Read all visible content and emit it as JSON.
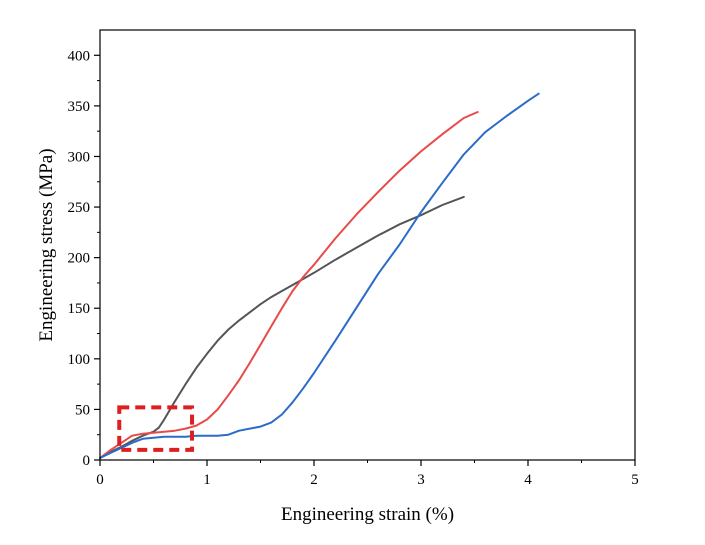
{
  "chart_data": {
    "type": "line",
    "title": "",
    "xlabel": "Engineering strain (%)",
    "ylabel": "Engineering stress (MPa)",
    "xlim": [
      0,
      5
    ],
    "ylim": [
      0,
      425
    ],
    "xticks": [
      0,
      1,
      2,
      3,
      4,
      5
    ],
    "yticks": [
      0,
      50,
      100,
      150,
      200,
      250,
      300,
      350,
      400
    ],
    "grid": false,
    "legend": "none",
    "series": [
      {
        "color": "#555555",
        "x": [
          0,
          0.1,
          0.2,
          0.3,
          0.4,
          0.5,
          0.55,
          0.6,
          0.7,
          0.8,
          0.9,
          1.0,
          1.1,
          1.2,
          1.3,
          1.4,
          1.5,
          1.6,
          1.7,
          1.8,
          2.0,
          2.2,
          2.4,
          2.6,
          2.8,
          3.0,
          3.2,
          3.4
        ],
        "y": [
          2,
          8,
          13,
          19,
          24,
          28,
          32,
          40,
          58,
          75,
          91,
          105,
          118,
          129,
          138,
          146,
          154,
          161,
          167,
          173,
          185,
          198,
          210,
          222,
          233,
          242,
          252,
          260
        ]
      },
      {
        "color": "#e84a4a",
        "x": [
          0,
          0.1,
          0.2,
          0.3,
          0.4,
          0.5,
          0.6,
          0.7,
          0.8,
          0.9,
          1.0,
          1.1,
          1.2,
          1.3,
          1.4,
          1.5,
          1.6,
          1.7,
          1.8,
          1.9,
          2.0,
          2.2,
          2.4,
          2.6,
          2.8,
          3.0,
          3.2,
          3.4,
          3.53
        ],
        "y": [
          2,
          10,
          17,
          24,
          26,
          27,
          28,
          29,
          31,
          34,
          40,
          50,
          64,
          79,
          96,
          114,
          132,
          150,
          167,
          181,
          193,
          219,
          243,
          265,
          286,
          305,
          322,
          338,
          344
        ]
      },
      {
        "color": "#2a6cc8",
        "x": [
          0,
          0.1,
          0.2,
          0.3,
          0.4,
          0.5,
          0.6,
          0.7,
          0.8,
          0.9,
          1.0,
          1.1,
          1.2,
          1.3,
          1.4,
          1.5,
          1.6,
          1.7,
          1.8,
          1.9,
          2.0,
          2.2,
          2.4,
          2.6,
          2.8,
          3.0,
          3.2,
          3.4,
          3.6,
          3.8,
          4.0,
          4.1
        ],
        "y": [
          2,
          7,
          12,
          17,
          21,
          22,
          23,
          23,
          23,
          24,
          24,
          24,
          25,
          29,
          31,
          33,
          37,
          45,
          57,
          71,
          86,
          118,
          151,
          184,
          213,
          245,
          274,
          302,
          324,
          340,
          355,
          362
        ]
      }
    ],
    "annotations": [
      {
        "type": "dashed-rectangle",
        "color": "#dd1f1f",
        "x": [
          0.18,
          0.86
        ],
        "y": [
          10,
          52
        ]
      }
    ]
  }
}
